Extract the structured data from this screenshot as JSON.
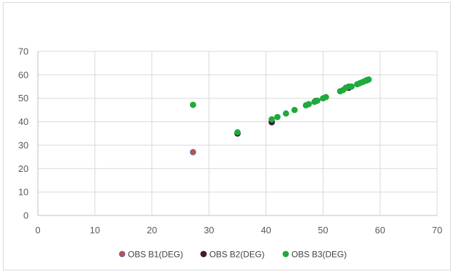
{
  "chart_data": {
    "type": "scatter",
    "title": "",
    "xlabel": "",
    "ylabel": "",
    "xlim": [
      0,
      70
    ],
    "ylim": [
      0,
      70
    ],
    "xticks": [
      0,
      10,
      20,
      30,
      40,
      50,
      60,
      70
    ],
    "yticks": [
      0,
      10,
      20,
      30,
      40,
      50,
      60,
      70
    ],
    "grid": true,
    "legend_position": "bottom",
    "series": [
      {
        "name": "OBS B1(DEG)",
        "color": "#c0504d",
        "stroke": "#4f6fbf",
        "points": [
          [
            27.2,
            27.0
          ],
          [
            35.0,
            35.0
          ],
          [
            41.0,
            40.0
          ],
          [
            54.0,
            54.5
          ],
          [
            57.5,
            57.5
          ]
        ]
      },
      {
        "name": "OBS B2(DEG)",
        "color": "#4a1732",
        "stroke": "#2a0a1a",
        "points": [
          [
            35.0,
            35.0
          ],
          [
            41.0,
            39.8
          ],
          [
            48.7,
            48.8
          ],
          [
            54.5,
            54.5
          ],
          [
            57.7,
            57.7
          ]
        ]
      },
      {
        "name": "OBS B3(DEG)",
        "color": "#1faa3c",
        "stroke": "#1faa3c",
        "points": [
          [
            27.2,
            47.2
          ],
          [
            35.0,
            35.5
          ],
          [
            41.0,
            41.0
          ],
          [
            42.0,
            42.0
          ],
          [
            43.5,
            43.5
          ],
          [
            45.0,
            45.0
          ],
          [
            47.0,
            47.0
          ],
          [
            47.5,
            47.5
          ],
          [
            48.5,
            48.5
          ],
          [
            49.0,
            49.0
          ],
          [
            50.0,
            50.0
          ],
          [
            50.5,
            50.5
          ],
          [
            53.0,
            53.0
          ],
          [
            53.5,
            53.5
          ],
          [
            54.0,
            54.5
          ],
          [
            54.5,
            55.0
          ],
          [
            55.0,
            55.0
          ],
          [
            56.0,
            56.0
          ],
          [
            56.5,
            56.5
          ],
          [
            57.0,
            57.0
          ],
          [
            57.5,
            57.5
          ],
          [
            58.0,
            58.0
          ]
        ]
      }
    ]
  }
}
